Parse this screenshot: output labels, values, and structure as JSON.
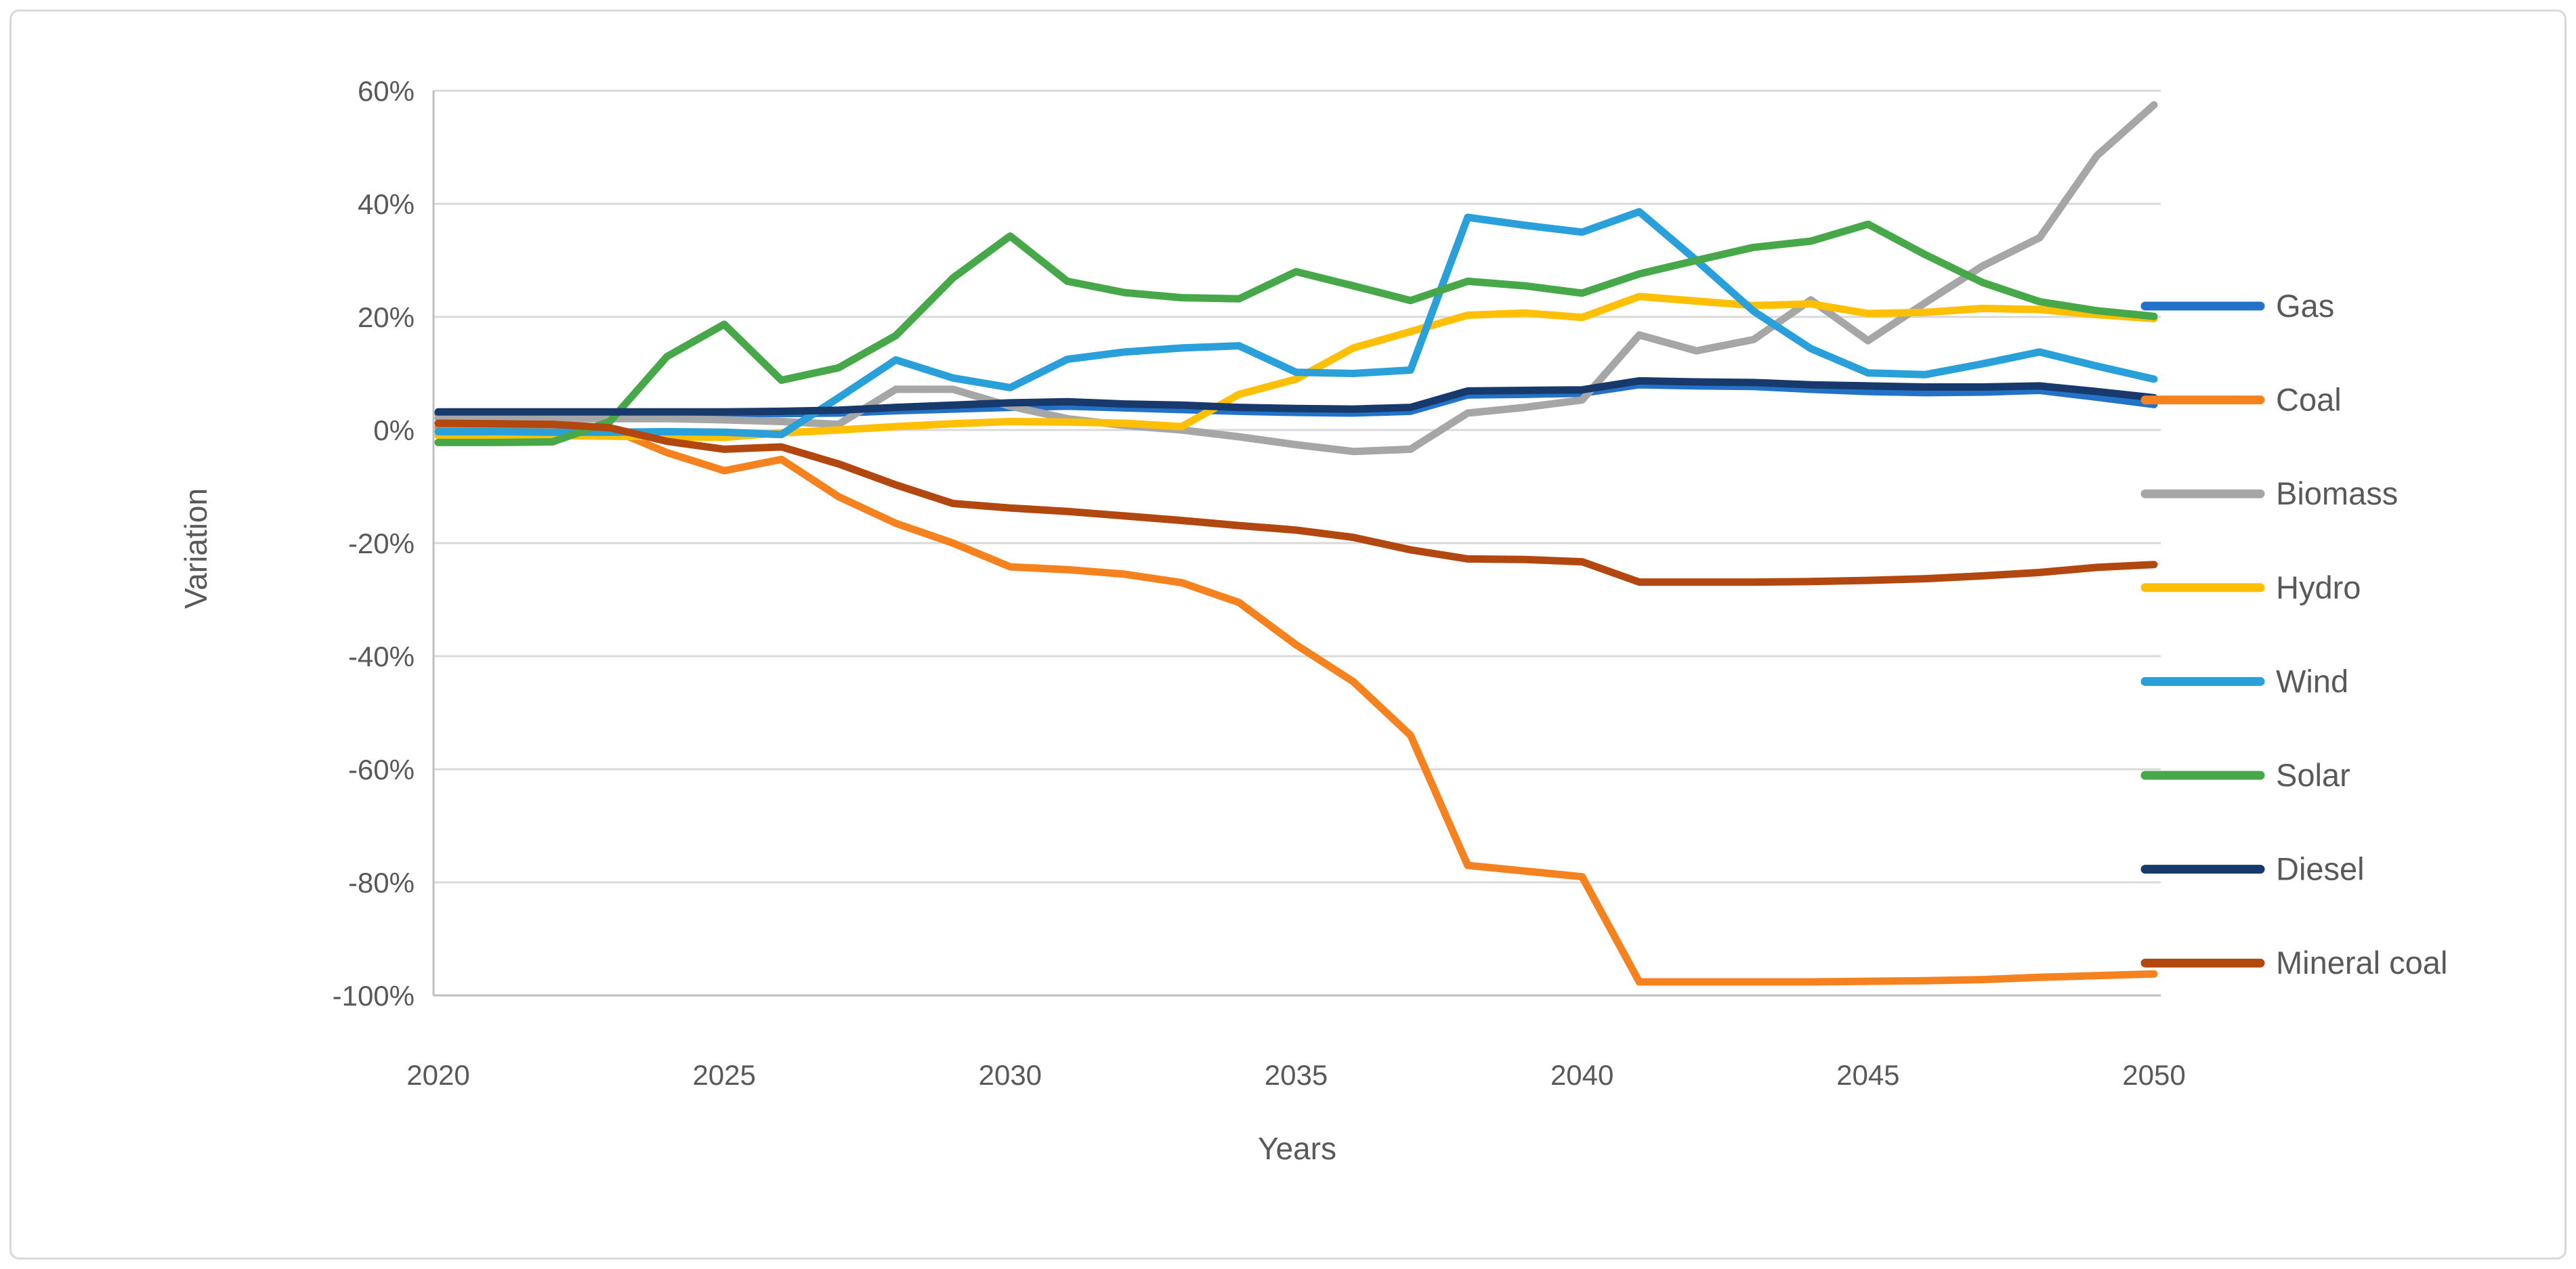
{
  "chart_data": {
    "type": "line",
    "title": "",
    "xlabel": "Years",
    "ylabel": "Variation",
    "grid": true,
    "legend_position": "right",
    "xlim": [
      2020,
      2050
    ],
    "ylim": [
      -100,
      60
    ],
    "x": [
      2020,
      2021,
      2022,
      2023,
      2024,
      2025,
      2026,
      2027,
      2028,
      2029,
      2030,
      2031,
      2032,
      2033,
      2034,
      2035,
      2036,
      2037,
      2038,
      2039,
      2040,
      2041,
      2042,
      2043,
      2044,
      2045,
      2046,
      2047,
      2048,
      2049,
      2050
    ],
    "xticks": [
      2020,
      2025,
      2030,
      2035,
      2040,
      2045,
      2050
    ],
    "xtick_labels": [
      "2020",
      "2025",
      "2030",
      "2035",
      "2040",
      "2045",
      "2050"
    ],
    "yticks": [
      60,
      40,
      20,
      0,
      -20,
      -40,
      -60,
      -80,
      -100
    ],
    "ytick_labels": [
      "60%",
      "40%",
      "20%",
      "0%",
      "-20%",
      "-40%",
      "-60%",
      "-80%",
      "-100%"
    ],
    "axis_text_color": "#595959",
    "gridline_color": "#D9D9D9",
    "axis_line_color": "#BFBFBF",
    "series": [
      {
        "name": "Gas",
        "color": "#2272C8",
        "values": [
          2.9,
          2.9,
          2.9,
          2.9,
          2.9,
          2.9,
          2.9,
          3.0,
          3.4,
          3.7,
          4.0,
          4.2,
          3.9,
          3.6,
          3.3,
          3.1,
          3.0,
          3.3,
          6.2,
          6.3,
          6.5,
          8.0,
          7.8,
          7.7,
          7.2,
          6.8,
          6.6,
          6.7,
          7.0,
          5.8,
          4.5
        ]
      },
      {
        "name": "Coal",
        "color": "#F5821F",
        "values": [
          0.5,
          0.8,
          0.8,
          0.2,
          -4.0,
          -7.2,
          -5.2,
          -11.8,
          -16.5,
          -20.0,
          -24.2,
          -24.7,
          -25.5,
          -27.0,
          -30.5,
          -38.0,
          -44.5,
          -54.0,
          -77.0,
          -78.0,
          -79.0,
          -97.6,
          -97.6,
          -97.6,
          -97.6,
          -97.5,
          -97.4,
          -97.2,
          -96.8,
          -96.5,
          -96.2
        ]
      },
      {
        "name": "Biomass",
        "color": "#A6A6A6",
        "values": [
          2.1,
          2.1,
          2.0,
          2.0,
          2.0,
          1.8,
          1.5,
          1.0,
          7.2,
          7.2,
          4.2,
          2.0,
          0.8,
          0.0,
          -1.2,
          -2.6,
          -3.8,
          -3.4,
          3.0,
          4.0,
          5.3,
          16.8,
          14.0,
          16.0,
          23.0,
          15.8,
          22.5,
          29.0,
          34.0,
          48.5,
          57.5
        ]
      },
      {
        "name": "Hydro",
        "color": "#FFC003",
        "values": [
          -1.0,
          -0.9,
          -1.0,
          -1.1,
          -1.2,
          -1.3,
          -0.5,
          0.0,
          0.6,
          1.1,
          1.5,
          1.4,
          1.2,
          0.6,
          6.3,
          9.0,
          14.5,
          17.4,
          20.3,
          20.7,
          19.9,
          23.6,
          22.8,
          22.0,
          22.3,
          20.6,
          20.8,
          21.5,
          21.3,
          20.4,
          19.7
        ]
      },
      {
        "name": "Wind",
        "color": "#29A0DA",
        "values": [
          -0.3,
          -0.3,
          -0.4,
          -0.4,
          -0.3,
          -0.4,
          -0.8,
          5.7,
          12.4,
          9.2,
          7.5,
          12.5,
          13.8,
          14.5,
          14.9,
          10.2,
          10.0,
          10.6,
          37.6,
          36.2,
          35.0,
          38.6,
          30.0,
          21.0,
          14.4,
          10.1,
          9.8,
          11.7,
          13.8,
          11.3,
          9.0
        ]
      },
      {
        "name": "Solar",
        "color": "#46A848",
        "values": [
          -2.2,
          -2.2,
          -2.1,
          1.5,
          13.0,
          18.7,
          8.8,
          11.0,
          16.7,
          26.9,
          34.3,
          26.3,
          24.3,
          23.4,
          23.2,
          28.0,
          25.5,
          22.9,
          26.3,
          25.5,
          24.2,
          27.6,
          30.0,
          32.3,
          33.4,
          36.4,
          31.0,
          26.1,
          22.7,
          21.1,
          20.1
        ]
      },
      {
        "name": "Diesel",
        "color": "#17396B",
        "values": [
          3.2,
          3.2,
          3.2,
          3.2,
          3.2,
          3.2,
          3.3,
          3.5,
          4.0,
          4.4,
          4.8,
          5.0,
          4.6,
          4.4,
          4.0,
          3.8,
          3.7,
          4.0,
          6.9,
          7.0,
          7.1,
          8.7,
          8.5,
          8.4,
          8.0,
          7.8,
          7.6,
          7.6,
          7.8,
          6.8,
          5.7
        ]
      },
      {
        "name": "Mineral coal",
        "color": "#B2470F",
        "values": [
          1.2,
          1.1,
          1.0,
          0.4,
          -2.0,
          -3.4,
          -3.0,
          -6.0,
          -9.7,
          -13.0,
          -13.8,
          -14.4,
          -15.2,
          -16.0,
          -16.9,
          -17.7,
          -19.0,
          -21.2,
          -22.8,
          -22.9,
          -23.3,
          -26.9,
          -26.9,
          -26.9,
          -26.8,
          -26.6,
          -26.3,
          -25.8,
          -25.2,
          -24.3,
          -23.8
        ]
      }
    ]
  }
}
